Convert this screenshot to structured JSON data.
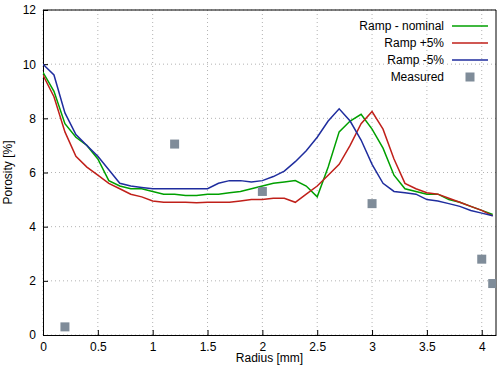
{
  "chart_data": {
    "type": "line",
    "x_label": "Radius [mm]",
    "y_label": "Porosity [%]",
    "x": [
      0,
      0.1,
      0.2,
      0.3,
      0.4,
      0.5,
      0.6,
      0.7,
      0.8,
      0.9,
      1.0,
      1.1,
      1.2,
      1.3,
      1.4,
      1.5,
      1.6,
      1.7,
      1.8,
      1.9,
      2.0,
      2.1,
      2.2,
      2.3,
      2.4,
      2.5,
      2.6,
      2.7,
      2.8,
      2.9,
      3.0,
      3.1,
      3.2,
      3.3,
      3.4,
      3.5,
      3.6,
      3.7,
      3.8,
      3.9,
      4.0,
      4.1
    ],
    "xlim": [
      0,
      4.13
    ],
    "xticks": [
      0,
      0.5,
      1,
      1.5,
      2,
      2.5,
      3,
      3.5,
      4
    ],
    "ylim": [
      0,
      12
    ],
    "yticks": [
      0,
      2,
      4,
      6,
      8,
      10,
      12
    ],
    "grid": true,
    "legend": "top-right",
    "series": [
      {
        "name": "Ramp - nominal",
        "color": "#00a000",
        "type": "line",
        "values": [
          9.7,
          9.0,
          7.8,
          7.3,
          7.0,
          6.5,
          5.7,
          5.5,
          5.4,
          5.4,
          5.3,
          5.2,
          5.2,
          5.15,
          5.15,
          5.2,
          5.2,
          5.25,
          5.3,
          5.4,
          5.5,
          5.6,
          5.65,
          5.7,
          5.5,
          5.1,
          6.2,
          7.5,
          7.9,
          8.15,
          7.6,
          6.9,
          5.9,
          5.4,
          5.3,
          5.2,
          5.2,
          5.0,
          4.9,
          4.75,
          4.6,
          4.45
        ]
      },
      {
        "name": "Ramp +5%",
        "color": "#c0201a",
        "type": "line",
        "values": [
          9.6,
          8.8,
          7.5,
          6.6,
          6.2,
          5.9,
          5.6,
          5.4,
          5.2,
          5.1,
          4.95,
          4.9,
          4.9,
          4.9,
          4.88,
          4.9,
          4.9,
          4.9,
          4.95,
          5.0,
          5.0,
          5.05,
          5.05,
          4.9,
          5.2,
          5.5,
          5.9,
          6.3,
          7.0,
          7.8,
          8.25,
          7.6,
          6.5,
          5.6,
          5.4,
          5.25,
          5.2,
          5.05,
          4.9,
          4.75,
          4.6,
          4.4
        ]
      },
      {
        "name": "Ramp -5%",
        "color": "#1f2d9e",
        "type": "line",
        "values": [
          10.0,
          9.6,
          8.2,
          7.4,
          7.0,
          6.6,
          6.1,
          5.6,
          5.5,
          5.45,
          5.4,
          5.4,
          5.4,
          5.4,
          5.4,
          5.4,
          5.6,
          5.7,
          5.7,
          5.65,
          5.7,
          5.85,
          6.05,
          6.4,
          6.8,
          7.3,
          7.9,
          8.35,
          7.9,
          7.2,
          6.3,
          5.6,
          5.3,
          5.25,
          5.2,
          5.0,
          4.95,
          4.85,
          4.75,
          4.6,
          4.5,
          4.4
        ]
      },
      {
        "name": "Measured",
        "color": "#7f8c99",
        "type": "scatter",
        "marker": "square",
        "x": [
          0.2,
          1.2,
          2.0,
          3.0,
          4.0,
          4.1
        ],
        "values": [
          0.3,
          7.05,
          5.3,
          4.85,
          2.8,
          1.9
        ]
      }
    ]
  }
}
